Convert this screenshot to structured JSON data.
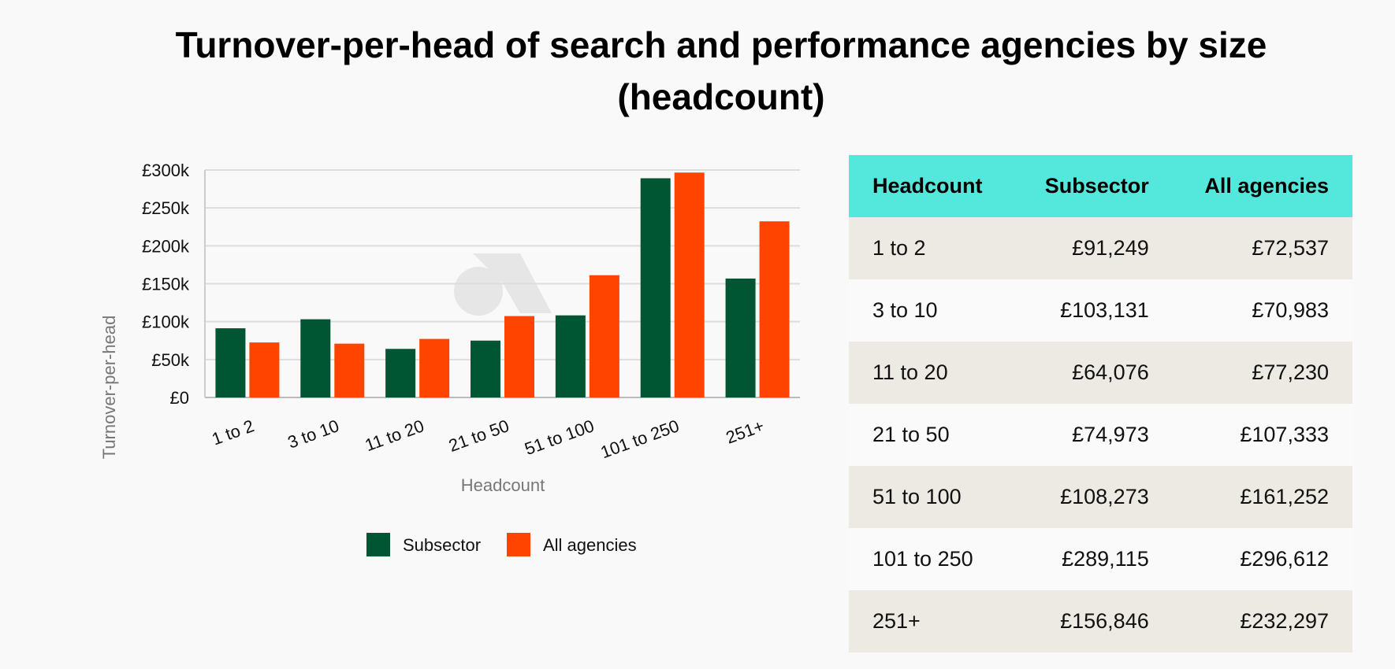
{
  "title": "Turnover-per-head of search and performance agencies by size (headcount)",
  "chart_data": {
    "type": "bar",
    "title": "Turnover-per-head of search and performance agencies by size (headcount)",
    "xlabel": "Headcount",
    "ylabel": "Turnover-per-head",
    "categories": [
      "1 to 2",
      "3 to 10",
      "11 to 20",
      "21 to 50",
      "51 to 100",
      "101 to 250",
      "251+"
    ],
    "series": [
      {
        "name": "Subsector",
        "color": "#005532",
        "values": [
          91249,
          103131,
          64076,
          74973,
          108273,
          289115,
          156846
        ]
      },
      {
        "name": "All agencies",
        "color": "#ff4400",
        "values": [
          72537,
          70983,
          77230,
          107333,
          161252,
          296612,
          232297
        ]
      }
    ],
    "ylim": [
      0,
      300000
    ],
    "yticks": [
      0,
      50000,
      100000,
      150000,
      200000,
      250000,
      300000
    ],
    "ytick_labels": [
      "£0",
      "£50k",
      "£100k",
      "£150k",
      "£200k",
      "£250k",
      "£300k"
    ],
    "grid": true,
    "legend": "bottom"
  },
  "table": {
    "columns": [
      "Headcount",
      "Subsector",
      "All agencies"
    ],
    "rows": [
      [
        "1 to 2",
        "£91,249",
        "£72,537"
      ],
      [
        "3 to 10",
        "£103,131",
        "£70,983"
      ],
      [
        "11 to 20",
        "£64,076",
        "£77,230"
      ],
      [
        "21 to 50",
        "£74,973",
        "£107,333"
      ],
      [
        "51 to 100",
        "£108,273",
        "£161,252"
      ],
      [
        "101 to 250",
        "£289,115",
        "£296,612"
      ],
      [
        "251+",
        "£156,846",
        "£232,297"
      ]
    ]
  }
}
